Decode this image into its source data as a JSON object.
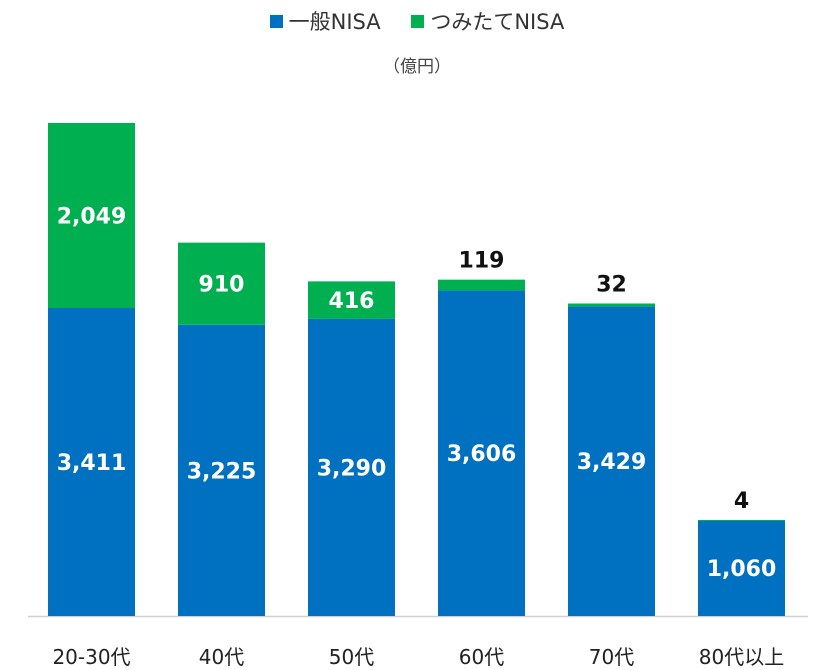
{
  "chart_data": {
    "type": "bar",
    "stacked": true,
    "title": "",
    "unit_label": "（億円）",
    "categories": [
      "20-30代",
      "40代",
      "50代",
      "60代",
      "70代",
      "80代以上"
    ],
    "series": [
      {
        "name": "一般NISA",
        "color": "#0070C0",
        "values": [
          3411,
          3225,
          3290,
          3606,
          3429,
          1060
        ],
        "labels": [
          "3,411",
          "3,225",
          "3,290",
          "3,606",
          "3,429",
          "1,060"
        ]
      },
      {
        "name": "つみたてNISA",
        "color": "#00B050",
        "values": [
          2049,
          910,
          416,
          119,
          32,
          4
        ],
        "labels": [
          "2,049",
          "910",
          "416",
          "119",
          "32",
          "4"
        ]
      }
    ],
    "legend_position": "top",
    "grid": false,
    "ylim": [
      0,
      5460
    ],
    "xlabel": "",
    "ylabel": ""
  }
}
